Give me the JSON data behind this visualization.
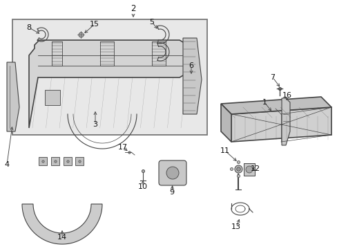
{
  "bg_color": "#ffffff",
  "box_bg": "#ebebeb",
  "box_border": "#666666",
  "line_color": "#444444",
  "label_color": "#111111",
  "figsize": [
    4.89,
    3.6
  ],
  "dpi": 100
}
